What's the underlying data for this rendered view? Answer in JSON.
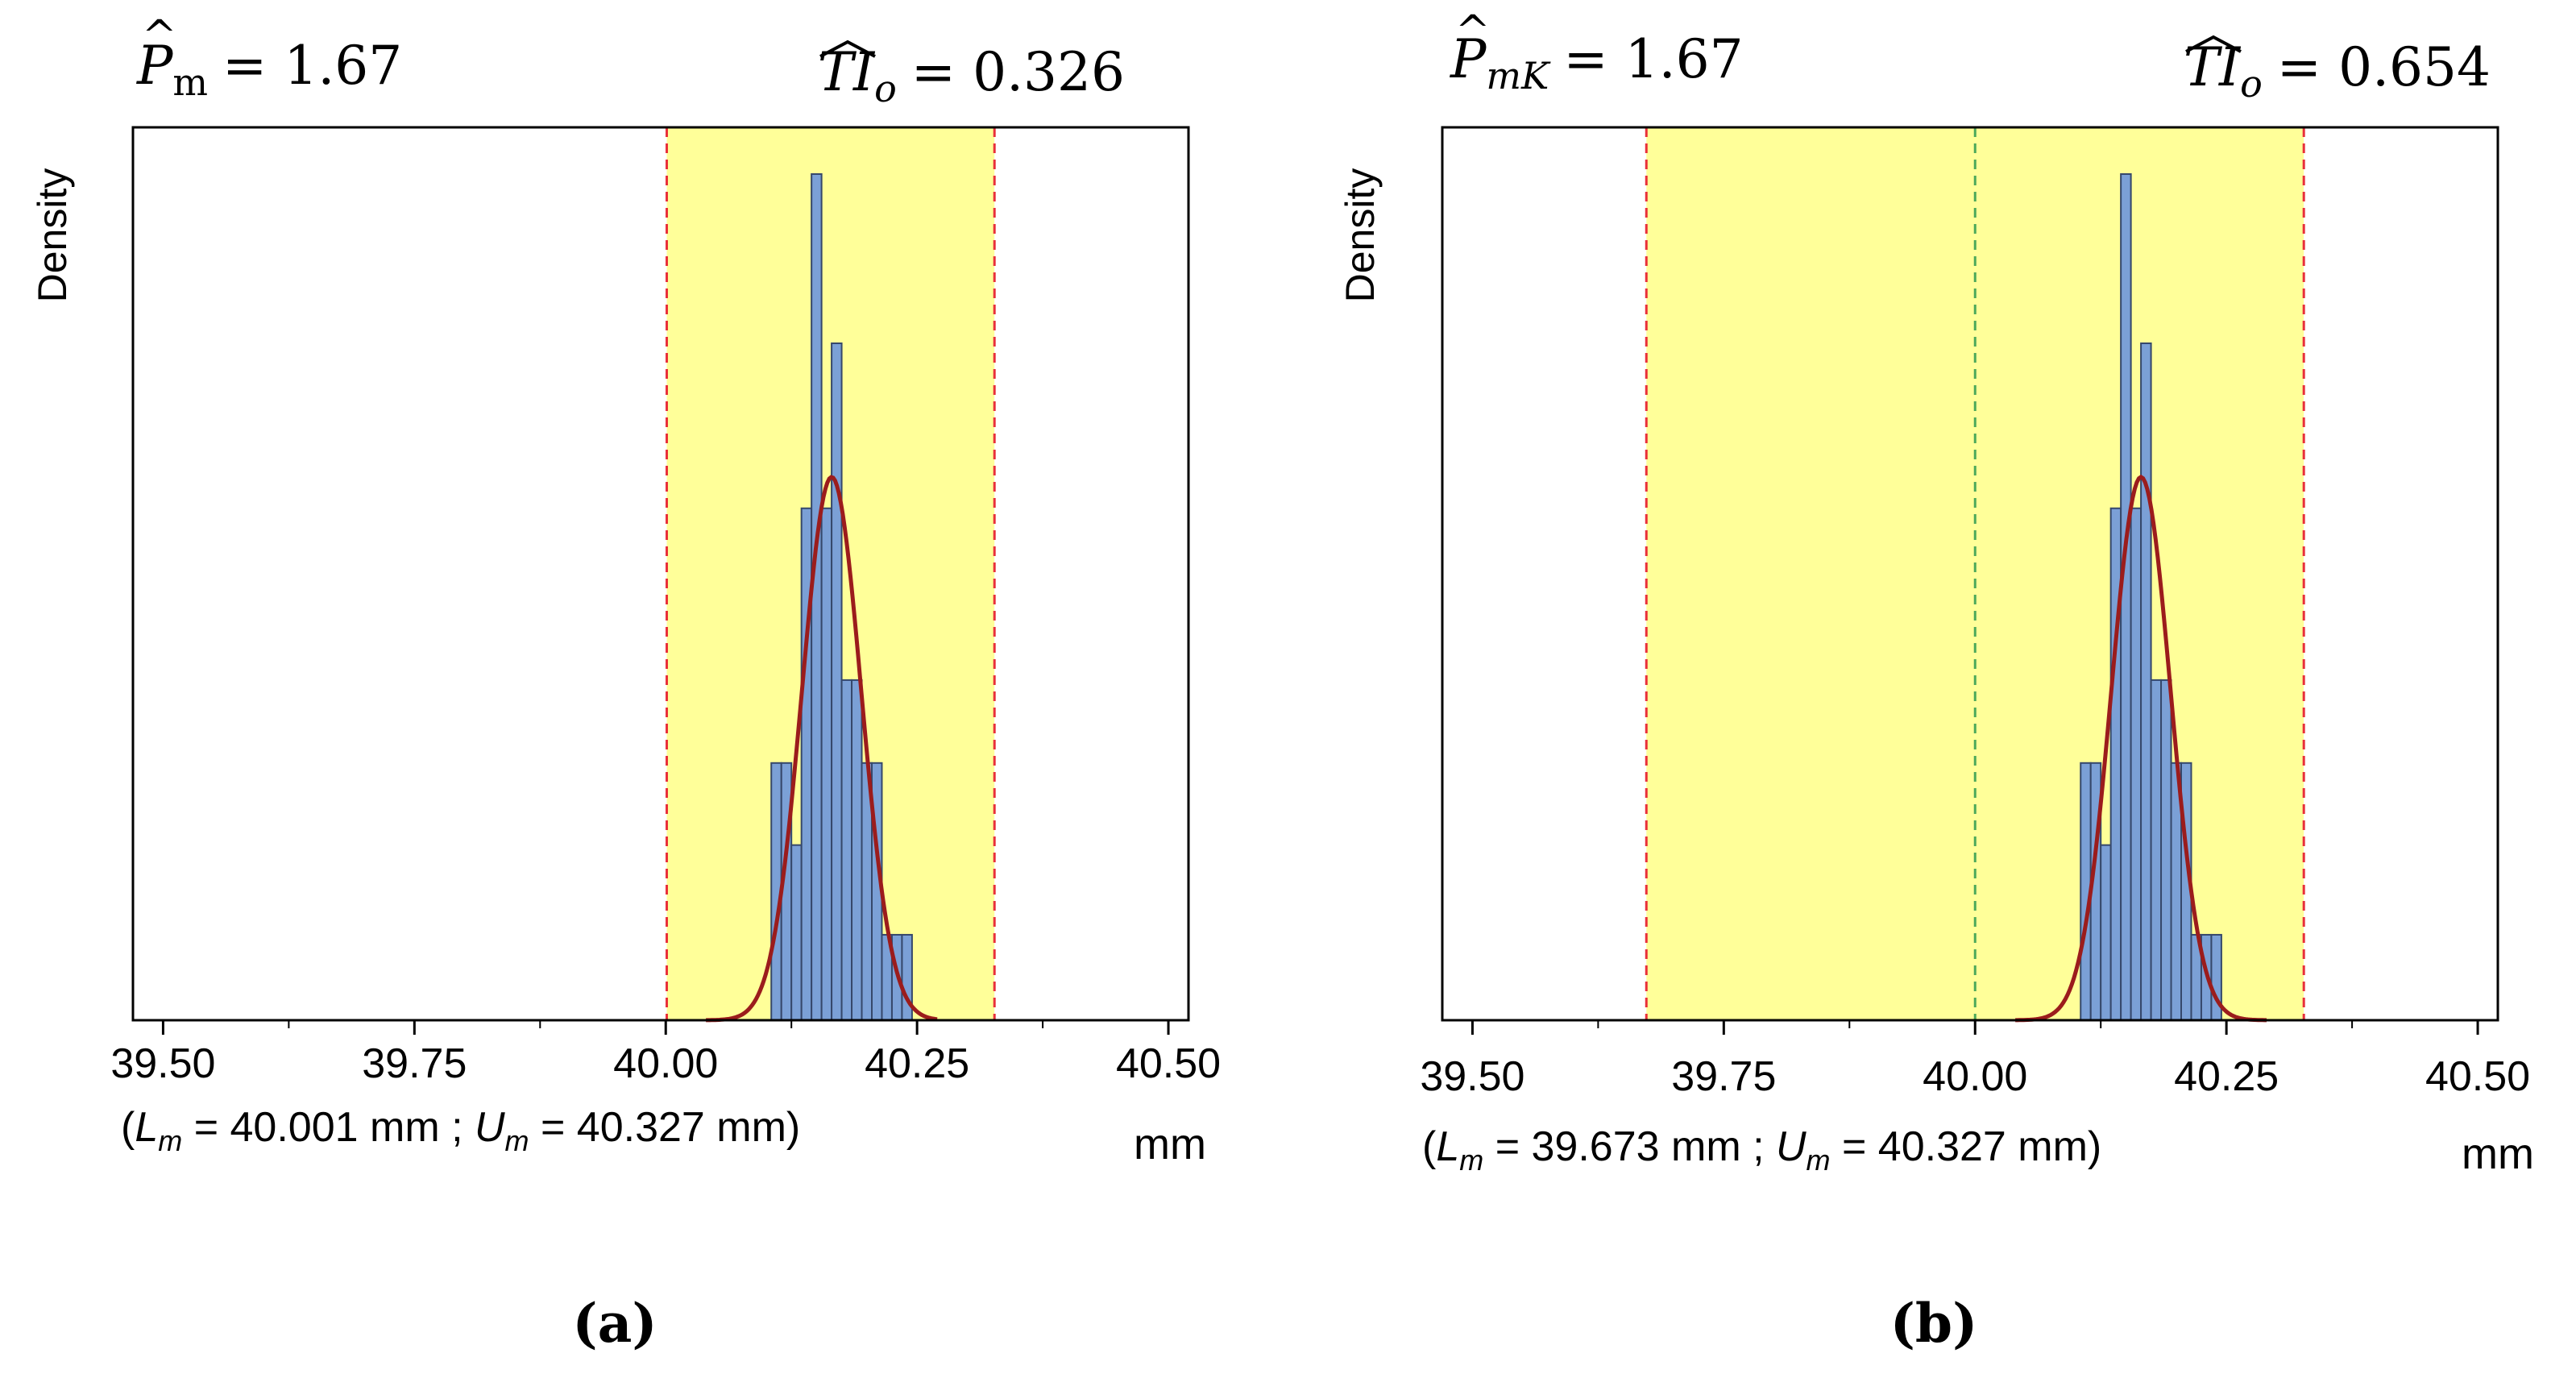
{
  "colors": {
    "spec_band": "#ffff99",
    "bar_fill": "#7ba0d6",
    "bar_stroke": "#36486b",
    "density_curve": "#9b1c1c",
    "limit_line": "#e8303a",
    "center_line": "#4ca85a",
    "frame": "#000000"
  },
  "chart_data": [
    {
      "type": "histogram",
      "panel_label": "(a)",
      "stat_left": {
        "symbol": "P",
        "subscript": "m",
        "value": "= 1.67"
      },
      "stat_right": {
        "symbol": "TI",
        "subscript": "o",
        "value": "= 0.326"
      },
      "ylabel": "Density",
      "xlabel": "mm",
      "xlim": [
        39.47,
        40.52
      ],
      "ylim": [
        0,
        10
      ],
      "xticks": [
        {
          "value": 39.5,
          "label": "39.50"
        },
        {
          "value": 39.75,
          "label": "39.75"
        },
        {
          "value": 40.0,
          "label": "40.00"
        },
        {
          "value": 40.25,
          "label": "40.25"
        },
        {
          "value": 40.5,
          "label": "40.50"
        }
      ],
      "minor_ticks": [
        39.625,
        39.875,
        40.125,
        40.375
      ],
      "limits_caption": {
        "L_prefix": "(",
        "L_symbol": "L",
        "L_sub": "m",
        "L_text": " = 40.001 mm ; ",
        "U_symbol": "U",
        "U_sub": "m",
        "U_text": " = 40.327 mm)"
      },
      "spec_band": [
        40.001,
        40.327
      ],
      "limit_lines": [
        40.001,
        40.327
      ],
      "center_line": null,
      "bins": [
        {
          "x0": 40.105,
          "x1": 40.115,
          "y": 3.04
        },
        {
          "x0": 40.115,
          "x1": 40.125,
          "y": 3.04
        },
        {
          "x0": 40.125,
          "x1": 40.135,
          "y": 2.07
        },
        {
          "x0": 40.135,
          "x1": 40.145,
          "y": 6.05
        },
        {
          "x0": 40.145,
          "x1": 40.155,
          "y": 10.0
        },
        {
          "x0": 40.155,
          "x1": 40.165,
          "y": 6.05
        },
        {
          "x0": 40.165,
          "x1": 40.175,
          "y": 8.0
        },
        {
          "x0": 40.175,
          "x1": 40.185,
          "y": 4.02
        },
        {
          "x0": 40.185,
          "x1": 40.195,
          "y": 4.02
        },
        {
          "x0": 40.195,
          "x1": 40.205,
          "y": 3.04
        },
        {
          "x0": 40.205,
          "x1": 40.215,
          "y": 3.04
        },
        {
          "x0": 40.215,
          "x1": 40.225,
          "y": 1.01
        },
        {
          "x0": 40.225,
          "x1": 40.235,
          "y": 1.01
        },
        {
          "x0": 40.235,
          "x1": 40.245,
          "y": 1.01
        }
      ],
      "curve": {
        "mean": 40.165,
        "sd": 0.0295,
        "peak": 6.42,
        "x_from": 40.04,
        "x_to": 40.27
      }
    },
    {
      "type": "histogram",
      "panel_label": "(b)",
      "stat_left": {
        "symbol": "P",
        "subscript": "mK",
        "value": "= 1.67"
      },
      "stat_right": {
        "symbol": "TI",
        "subscript": "o",
        "value": "= 0.654"
      },
      "ylabel": "Density",
      "xlabel": "mm",
      "xlim": [
        39.47,
        40.52
      ],
      "ylim": [
        0,
        10
      ],
      "xticks": [
        {
          "value": 39.5,
          "label": "39.50"
        },
        {
          "value": 39.75,
          "label": "39.75"
        },
        {
          "value": 40.0,
          "label": "40.00"
        },
        {
          "value": 40.25,
          "label": "40.25"
        },
        {
          "value": 40.5,
          "label": "40.50"
        }
      ],
      "minor_ticks": [
        39.625,
        39.875,
        40.125,
        40.375
      ],
      "limits_caption": {
        "L_prefix": "(",
        "L_symbol": "L",
        "L_sub": "m",
        "L_text": " = 39.673 mm ; ",
        "U_symbol": "U",
        "U_sub": "m",
        "U_text": " = 40.327 mm)"
      },
      "spec_band": [
        39.673,
        40.327
      ],
      "limit_lines": [
        39.673,
        40.327
      ],
      "center_line": 40.0,
      "bins": [
        {
          "x0": 40.105,
          "x1": 40.115,
          "y": 3.04
        },
        {
          "x0": 40.115,
          "x1": 40.125,
          "y": 3.04
        },
        {
          "x0": 40.125,
          "x1": 40.135,
          "y": 2.07
        },
        {
          "x0": 40.135,
          "x1": 40.145,
          "y": 6.05
        },
        {
          "x0": 40.145,
          "x1": 40.155,
          "y": 10.0
        },
        {
          "x0": 40.155,
          "x1": 40.165,
          "y": 6.05
        },
        {
          "x0": 40.165,
          "x1": 40.175,
          "y": 8.0
        },
        {
          "x0": 40.175,
          "x1": 40.185,
          "y": 4.02
        },
        {
          "x0": 40.185,
          "x1": 40.195,
          "y": 4.02
        },
        {
          "x0": 40.195,
          "x1": 40.205,
          "y": 3.04
        },
        {
          "x0": 40.205,
          "x1": 40.215,
          "y": 3.04
        },
        {
          "x0": 40.215,
          "x1": 40.225,
          "y": 1.01
        },
        {
          "x0": 40.225,
          "x1": 40.235,
          "y": 1.01
        },
        {
          "x0": 40.235,
          "x1": 40.245,
          "y": 1.01
        }
      ],
      "curve": {
        "mean": 40.165,
        "sd": 0.0295,
        "peak": 6.42,
        "x_from": 40.04,
        "x_to": 40.29
      }
    }
  ]
}
